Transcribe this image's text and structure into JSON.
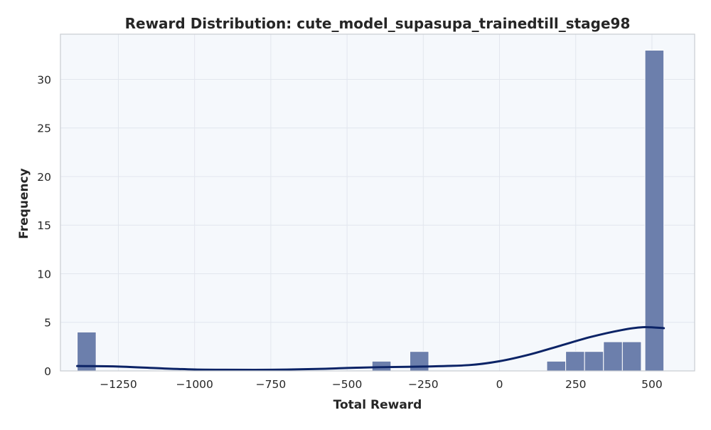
{
  "chart_data": {
    "type": "histogram",
    "title": "Reward Distribution: cute_model_supasupa_trainedtill_stage98",
    "xlabel": "Total Reward",
    "ylabel": "Frequency",
    "xlim": [
      -1440,
      640
    ],
    "ylim": [
      0,
      34.65
    ],
    "xticks": [
      {
        "value": -1250,
        "label": "−1250"
      },
      {
        "value": -1000,
        "label": "−1000"
      },
      {
        "value": -750,
        "label": "−750"
      },
      {
        "value": -500,
        "label": "−500"
      },
      {
        "value": -250,
        "label": "−250"
      },
      {
        "value": 0,
        "label": "0"
      },
      {
        "value": 250,
        "label": "250"
      },
      {
        "value": 500,
        "label": "500"
      }
    ],
    "yticks": [
      {
        "value": 0,
        "label": "0"
      },
      {
        "value": 5,
        "label": "5"
      },
      {
        "value": 10,
        "label": "10"
      },
      {
        "value": 15,
        "label": "15"
      },
      {
        "value": 20,
        "label": "20"
      },
      {
        "value": 25,
        "label": "25"
      },
      {
        "value": 30,
        "label": "30"
      }
    ],
    "bins": [
      {
        "x0": -1385,
        "x1": -1323,
        "count": 4
      },
      {
        "x0": -418,
        "x1": -356,
        "count": 1
      },
      {
        "x0": -294,
        "x1": -232,
        "count": 2
      },
      {
        "x0": 155,
        "x1": 217,
        "count": 1
      },
      {
        "x0": 217,
        "x1": 279,
        "count": 2
      },
      {
        "x0": 279,
        "x1": 341,
        "count": 2
      },
      {
        "x0": 341,
        "x1": 403,
        "count": 3
      },
      {
        "x0": 403,
        "x1": 465,
        "count": 3
      },
      {
        "x0": 477,
        "x1": 539,
        "count": 33
      }
    ],
    "kde": [
      {
        "x": -1385,
        "y": 0.5
      },
      {
        "x": -1250,
        "y": 0.45
      },
      {
        "x": -1100,
        "y": 0.25
      },
      {
        "x": -1000,
        "y": 0.15
      },
      {
        "x": -900,
        "y": 0.12
      },
      {
        "x": -750,
        "y": 0.12
      },
      {
        "x": -600,
        "y": 0.2
      },
      {
        "x": -500,
        "y": 0.3
      },
      {
        "x": -400,
        "y": 0.38
      },
      {
        "x": -250,
        "y": 0.45
      },
      {
        "x": -100,
        "y": 0.6
      },
      {
        "x": 0,
        "y": 1.0
      },
      {
        "x": 100,
        "y": 1.7
      },
      {
        "x": 200,
        "y": 2.6
      },
      {
        "x": 300,
        "y": 3.5
      },
      {
        "x": 400,
        "y": 4.2
      },
      {
        "x": 470,
        "y": 4.5
      },
      {
        "x": 539,
        "y": 4.4
      }
    ],
    "grid": true,
    "colors": {
      "bar": "#6c7fac",
      "bar_edge": "#ffffff",
      "kde": "#0b2366",
      "plot_bg": "#f5f8fc",
      "grid": "#e2e6ee",
      "spine": "#c9ccd1"
    }
  }
}
